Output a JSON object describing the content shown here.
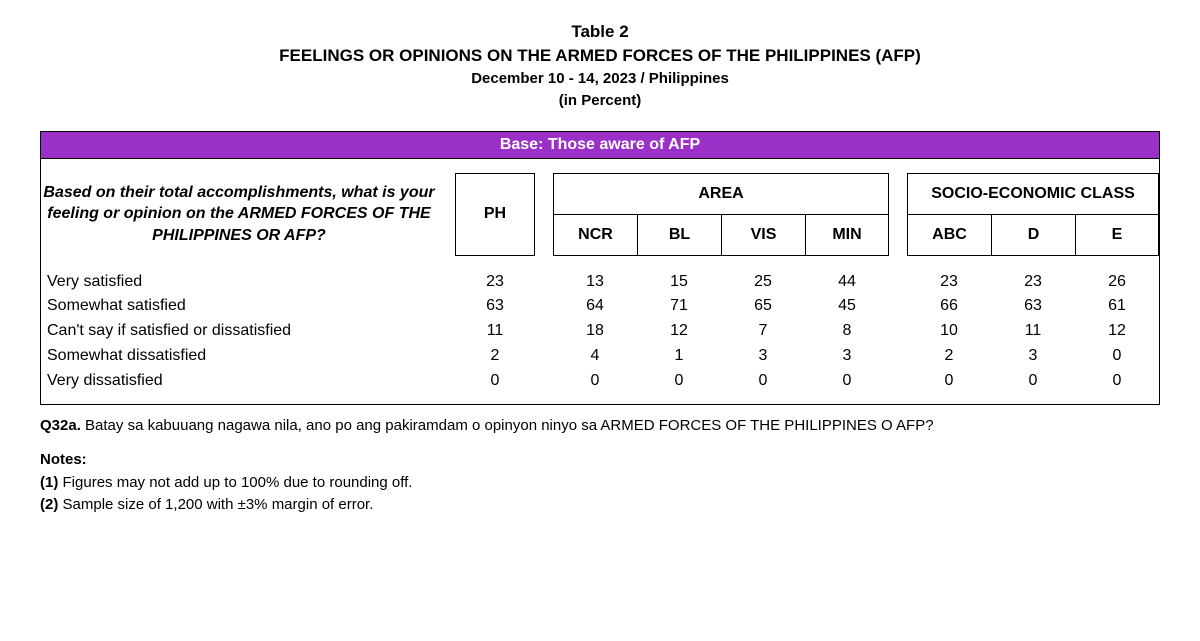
{
  "title": {
    "table_no": "Table 2",
    "main": "FEELINGS OR OPINIONS ON THE ARMED FORCES OF THE PHILIPPINES (AFP)",
    "date": "December 10 - 14, 2023 / Philippines",
    "unit": "(in Percent)"
  },
  "base_bar": "Base: Those aware of AFP",
  "question": "Based on their total accomplishments, what is your feeling or opinion on the ARMED FORCES OF THE PHILIPPINES OR AFP?",
  "columns": {
    "ph": "PH",
    "area_group": "AREA",
    "area_sub": [
      "NCR",
      "BL",
      "VIS",
      "MIN"
    ],
    "sec_group": "SOCIO-ECONOMIC CLASS",
    "sec_sub": [
      "ABC",
      "D",
      "E"
    ]
  },
  "rows": [
    {
      "label": "Very satisfied",
      "ph": "23",
      "area": [
        "13",
        "15",
        "25",
        "44"
      ],
      "sec": [
        "23",
        "23",
        "26"
      ]
    },
    {
      "label": "Somewhat satisfied",
      "ph": "63",
      "area": [
        "64",
        "71",
        "65",
        "45"
      ],
      "sec": [
        "66",
        "63",
        "61"
      ]
    },
    {
      "label": "Can't say if satisfied or dissatisfied",
      "ph": "11",
      "area": [
        "18",
        "12",
        "7",
        "8"
      ],
      "sec": [
        "10",
        "11",
        "12"
      ]
    },
    {
      "label": "Somewhat dissatisfied",
      "ph": "2",
      "area": [
        "4",
        "1",
        "3",
        "3"
      ],
      "sec": [
        "2",
        "3",
        "0"
      ]
    },
    {
      "label": "Very dissatisfied",
      "ph": "0",
      "area": [
        "0",
        "0",
        "0",
        "0"
      ],
      "sec": [
        "0",
        "0",
        "0"
      ]
    }
  ],
  "footnotes": {
    "q_ref": "Q32a.",
    "q_text": "Batay sa kabuuang nagawa nila, ano po ang pakiramdam o opinyon ninyo sa ARMED FORCES OF THE PHILIPPINES O AFP?",
    "notes_label": "Notes:",
    "note1_ref": "(1)",
    "note1": "Figures may not add up to 100% due to rounding off.",
    "note2_ref": "(2)",
    "note2": "Sample size of 1,200 with ±3% margin of error."
  },
  "style": {
    "accent": "#9b30c9",
    "border": "#000000",
    "text": "#000000",
    "bg": "#ffffff"
  }
}
